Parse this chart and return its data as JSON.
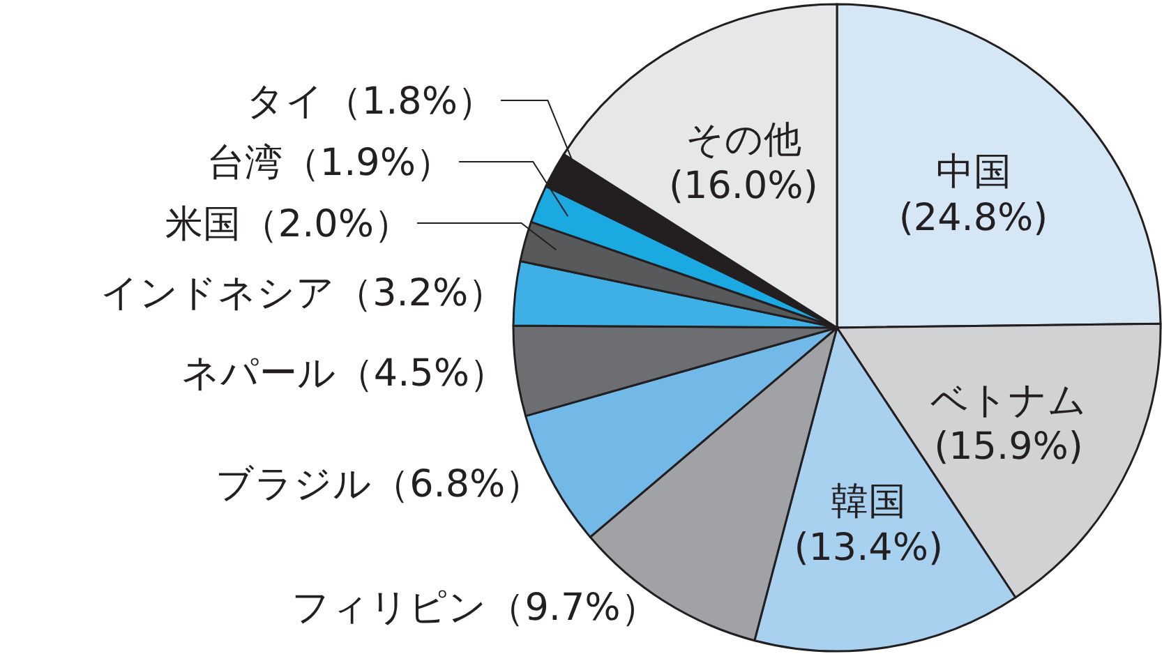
{
  "chart_data": {
    "type": "pie",
    "categories": [
      "中国",
      "ベトナム",
      "韓国",
      "フィリピン",
      "ブラジル",
      "ネパール",
      "インドネシア",
      "米国",
      "台湾",
      "タイ",
      "その他"
    ],
    "values": [
      24.8,
      15.9,
      13.4,
      9.7,
      6.8,
      4.5,
      3.2,
      2.0,
      1.9,
      1.8,
      16.0
    ],
    "colors": [
      "#d5e6f5",
      "#d1d2d3",
      "#a8d0ef",
      "#a1a2a5",
      "#72b9e8",
      "#6d6e71",
      "#3fb0e6",
      "#58595b",
      "#1ba9e1",
      "#231f20",
      "#e6e7e8"
    ],
    "value_labels": [
      "(24.8%)",
      "(15.9%)",
      "(13.4%)",
      "（9.7%）",
      "（6.8%）",
      "（4.5%）",
      "（3.2%）",
      "（2.0%）",
      "（1.9%）",
      "（1.8%）",
      "(16.0%)"
    ]
  }
}
